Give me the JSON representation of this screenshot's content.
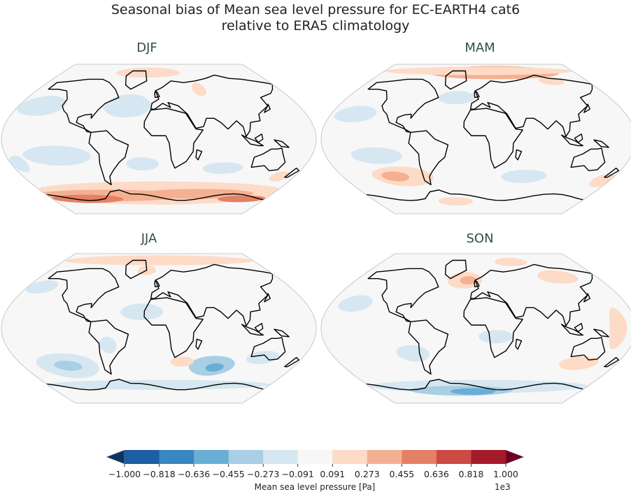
{
  "title_line1": "Seasonal bias of Mean sea level pressure for EC-EARTH4 cat6",
  "title_line2": "relative to ERA5 climatology",
  "panels": [
    {
      "season": "DJF"
    },
    {
      "season": "MAM"
    },
    {
      "season": "JJA"
    },
    {
      "season": "SON"
    }
  ],
  "colorbar": {
    "label": "Mean sea level pressure [Pa]",
    "exponent": "1e3",
    "ticks": [
      "−1.000",
      "−0.818",
      "−0.636",
      "−0.455",
      "−0.273",
      "−0.091",
      "0.091",
      "0.273",
      "0.455",
      "0.636",
      "0.818",
      "1.000"
    ],
    "colors": [
      "#1d5fa3",
      "#3986c0",
      "#6aaed6",
      "#a8cfe4",
      "#d6e7f1",
      "#f7f7f7",
      "#fddbc7",
      "#f5b093",
      "#e48066",
      "#cc4a43",
      "#a51a2b"
    ],
    "under_color": "#0b3463",
    "over_color": "#6a0222",
    "extend": "both",
    "colormap": "RdBu_r"
  }
}
